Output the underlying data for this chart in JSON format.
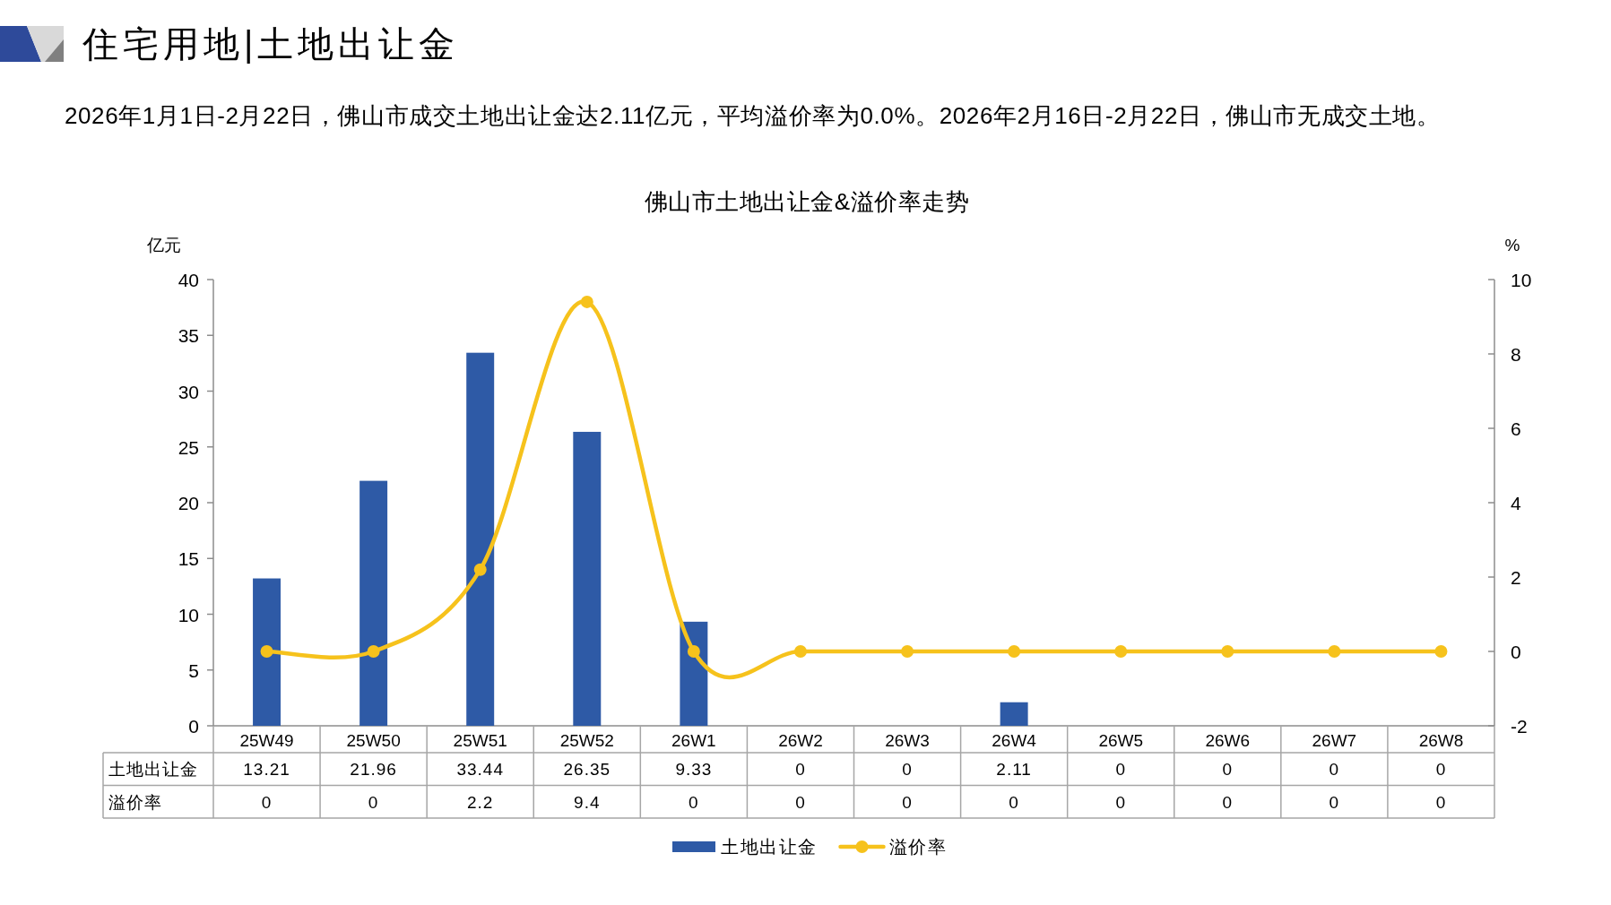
{
  "chart_data": {
    "type": "bar",
    "title": "佛山市土地出让金&溢价率走势",
    "subtitle": "2026年1月1日-2月22日，佛山市成交土地出让金达2.11亿元，平均溢价率为0.0%。2026年2月16日-2月22日，佛山市无成交土地。",
    "annotations": [
      "住宅用地|土地出让金"
    ],
    "ylabel": "亿元",
    "y2label": "%",
    "categories": [
      "25W49",
      "25W50",
      "25W51",
      "25W52",
      "26W1",
      "26W2",
      "26W3",
      "26W4",
      "26W5",
      "26W6",
      "26W7",
      "26W8"
    ],
    "series": [
      {
        "name": "土地出让金",
        "color": "#2e5aa6",
        "values": [
          13.21,
          21.96,
          33.44,
          26.35,
          9.33,
          0,
          0,
          2.11,
          0,
          0,
          0,
          0
        ]
      },
      {
        "name": "溢价率",
        "type": "line",
        "axis": "y2",
        "color": "#f6c21c",
        "values": [
          0,
          0,
          2.2,
          9.4,
          0,
          0,
          0,
          0,
          0,
          0,
          0,
          0
        ]
      }
    ],
    "ylim": [
      0,
      40
    ],
    "yticks": [
      0,
      5,
      10,
      15,
      20,
      25,
      30,
      35,
      40
    ],
    "y2lim": [
      -2,
      10
    ],
    "y2ticks": [
      -2,
      0,
      2,
      4,
      6,
      8,
      10
    ],
    "marker": "circle",
    "legend": "bottom",
    "data_labels": true
  }
}
